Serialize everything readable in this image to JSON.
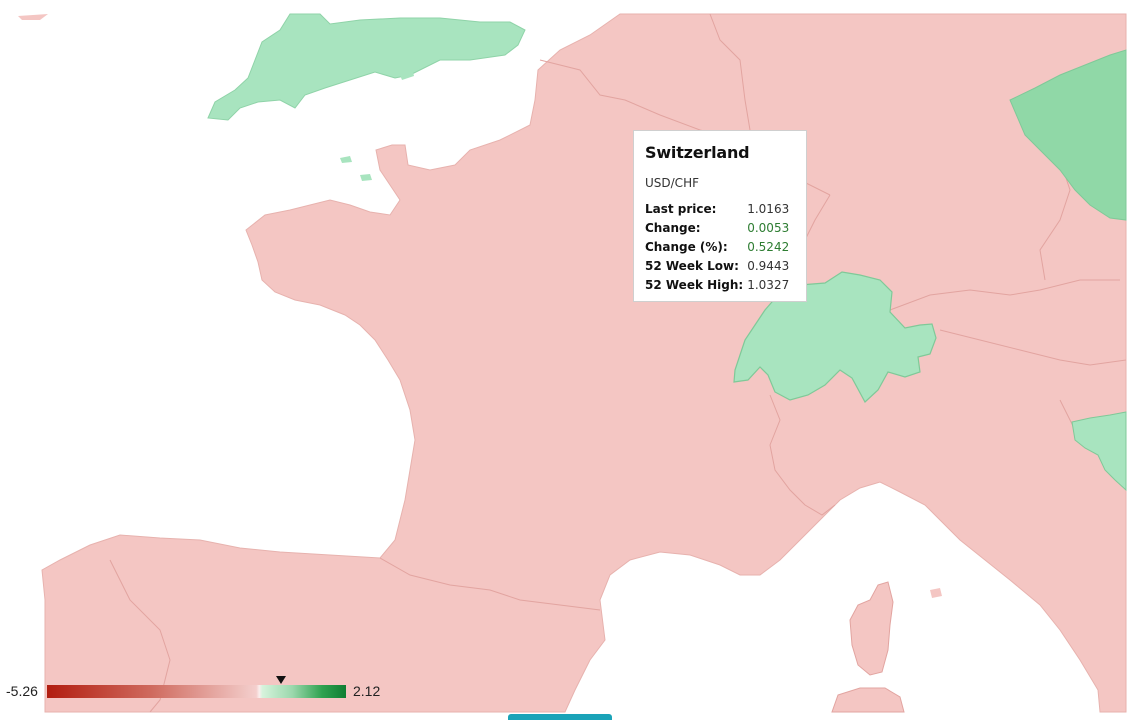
{
  "map": {
    "colors": {
      "negative_fill": "#f4c6c3",
      "positive_fill": "#a8e4bf",
      "positive_dark_fill": "#90d8a7",
      "border": "#e2a4a0",
      "positive_border": "#7fc998",
      "sea": "#ffffff"
    }
  },
  "tooltip": {
    "country": "Switzerland",
    "pair": "USD/CHF",
    "rows": [
      {
        "label": "Last price:",
        "value": "1.0163",
        "positive": false
      },
      {
        "label": "Change:",
        "value": "0.0053",
        "positive": true
      },
      {
        "label": "Change (%):",
        "value": "0.5242",
        "positive": true
      },
      {
        "label": "52 Week Low:",
        "value": "0.9443",
        "positive": false
      },
      {
        "label": "52 Week High:",
        "value": "1.0327",
        "positive": false
      }
    ]
  },
  "legend": {
    "min": "-5.26",
    "max": "2.12",
    "marker_value": 0.5242
  }
}
